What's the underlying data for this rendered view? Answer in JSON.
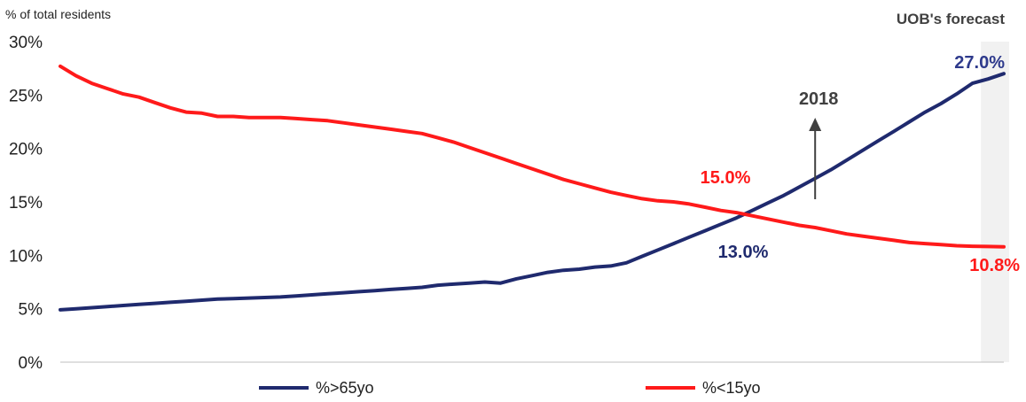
{
  "chart_data": {
    "type": "line",
    "ylabel": "% of total residents",
    "ylim": [
      0,
      30
    ],
    "yticks": [
      "0%",
      "5%",
      "10%",
      "15%",
      "20%",
      "25%",
      "30%"
    ],
    "xlim": [
      1970,
      2030
    ],
    "grid": false,
    "legend_position": "bottom",
    "forecast_label": "UOB's forecast",
    "forecast_range": [
      2029,
      2030
    ],
    "marker_label": "2018",
    "marker_x": 2018,
    "series": [
      {
        "name": "%>65yo",
        "color": "#1f2a6e",
        "x": [
          1970,
          1971,
          1972,
          1973,
          1974,
          1975,
          1976,
          1977,
          1978,
          1979,
          1980,
          1981,
          1982,
          1983,
          1984,
          1985,
          1986,
          1987,
          1988,
          1989,
          1990,
          1991,
          1992,
          1993,
          1994,
          1995,
          1996,
          1997,
          1998,
          1999,
          2000,
          2001,
          2002,
          2003,
          2004,
          2005,
          2006,
          2007,
          2008,
          2009,
          2010,
          2011,
          2012,
          2013,
          2014,
          2015,
          2016,
          2017,
          2018,
          2019,
          2020,
          2021,
          2022,
          2023,
          2024,
          2025,
          2026,
          2027,
          2028,
          2029,
          2030
        ],
        "values": [
          4.9,
          5.0,
          5.1,
          5.2,
          5.3,
          5.4,
          5.5,
          5.6,
          5.7,
          5.8,
          5.9,
          5.95,
          6.0,
          6.05,
          6.1,
          6.2,
          6.3,
          6.4,
          6.5,
          6.6,
          6.7,
          6.8,
          6.9,
          7.0,
          7.2,
          7.3,
          7.4,
          7.5,
          7.4,
          7.8,
          8.1,
          8.4,
          8.6,
          8.7,
          8.9,
          9.0,
          9.3,
          9.9,
          10.5,
          11.1,
          11.7,
          12.3,
          12.9,
          13.5,
          14.2,
          14.9,
          15.6,
          16.4,
          17.2,
          18.0,
          18.9,
          19.8,
          20.7,
          21.6,
          22.5,
          23.4,
          24.2,
          25.1,
          26.1,
          26.5,
          27.0
        ]
      },
      {
        "name": "%<15yo",
        "color": "#ff1a1a",
        "x": [
          1970,
          1971,
          1972,
          1973,
          1974,
          1975,
          1976,
          1977,
          1978,
          1979,
          1980,
          1981,
          1982,
          1983,
          1984,
          1985,
          1986,
          1987,
          1988,
          1989,
          1990,
          1991,
          1992,
          1993,
          1994,
          1995,
          1996,
          1997,
          1998,
          1999,
          2000,
          2001,
          2002,
          2003,
          2004,
          2005,
          2006,
          2007,
          2008,
          2009,
          2010,
          2011,
          2012,
          2013,
          2014,
          2015,
          2016,
          2017,
          2018,
          2019,
          2020,
          2021,
          2022,
          2023,
          2024,
          2025,
          2026,
          2027,
          2028,
          2029,
          2030
        ],
        "values": [
          27.7,
          26.8,
          26.1,
          25.6,
          25.1,
          24.8,
          24.3,
          23.8,
          23.4,
          23.3,
          23.0,
          23.0,
          22.9,
          22.9,
          22.9,
          22.8,
          22.7,
          22.6,
          22.4,
          22.2,
          22.0,
          21.8,
          21.6,
          21.4,
          21.0,
          20.6,
          20.1,
          19.6,
          19.1,
          18.6,
          18.1,
          17.6,
          17.1,
          16.7,
          16.3,
          15.9,
          15.6,
          15.3,
          15.1,
          15.0,
          14.8,
          14.5,
          14.2,
          14.0,
          13.7,
          13.4,
          13.1,
          12.8,
          12.6,
          12.3,
          12.0,
          11.8,
          11.6,
          11.4,
          11.2,
          11.1,
          11.0,
          10.9,
          10.85,
          10.82,
          10.8
        ]
      }
    ],
    "annotations": [
      {
        "text": "27.0%",
        "series": 0,
        "color": "#2e3a8c"
      },
      {
        "text": "13.0%",
        "series": 0,
        "color": "#1f2a6e"
      },
      {
        "text": "15.0%",
        "series": 1,
        "color": "#ff1a1a"
      },
      {
        "text": "10.8%",
        "series": 1,
        "color": "#ff1a1a"
      }
    ]
  }
}
